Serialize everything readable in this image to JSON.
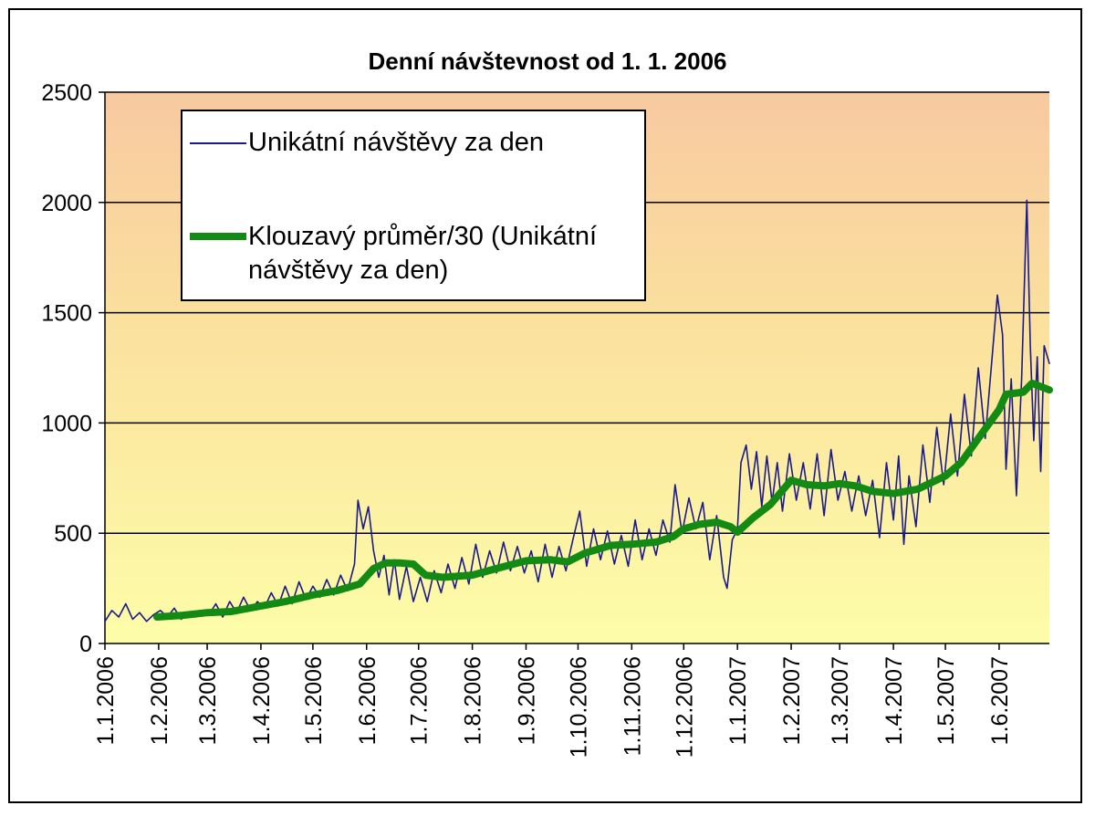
{
  "chart_data": {
    "type": "line",
    "title": "Denní návštevnost od 1. 1. 2006",
    "xlabel": "",
    "ylabel": "",
    "ylim": [
      0,
      2500
    ],
    "yticks": [
      0,
      500,
      1000,
      1500,
      2000,
      2500
    ],
    "x_range": [
      "2006-01-01",
      "2007-06-30"
    ],
    "xtick_labels": [
      "1.1.2006",
      "1.2.2006",
      "1.3.2006",
      "1.4.2006",
      "1.5.2006",
      "1.6.2006",
      "1.7.2006",
      "1.8.2006",
      "1.9.2006",
      "1.10.2006",
      "1.11.2006",
      "1.12.2006",
      "1.1.2007",
      "1.2.2007",
      "1.3.2007",
      "1.4.2007",
      "1.5.2007",
      "1.6.2007"
    ],
    "xtick_dates": [
      "2006-01-01",
      "2006-02-01",
      "2006-03-01",
      "2006-04-01",
      "2006-05-01",
      "2006-06-01",
      "2006-07-01",
      "2006-08-01",
      "2006-09-01",
      "2006-10-01",
      "2006-11-01",
      "2006-12-01",
      "2007-01-01",
      "2007-02-01",
      "2007-03-01",
      "2007-04-01",
      "2007-05-01",
      "2007-06-01"
    ],
    "grid": true,
    "legend_placement": "top-left",
    "series": [
      {
        "name": "Unikátní návštěvy za den",
        "color": "#1a1a8c",
        "style": "thin",
        "points": [
          [
            "2006-01-01",
            100
          ],
          [
            "2006-01-05",
            150
          ],
          [
            "2006-01-09",
            120
          ],
          [
            "2006-01-13",
            180
          ],
          [
            "2006-01-17",
            110
          ],
          [
            "2006-01-21",
            140
          ],
          [
            "2006-01-25",
            100
          ],
          [
            "2006-01-29",
            130
          ],
          [
            "2006-02-02",
            150
          ],
          [
            "2006-02-06",
            120
          ],
          [
            "2006-02-10",
            160
          ],
          [
            "2006-02-14",
            110
          ],
          [
            "2006-02-18",
            140
          ],
          [
            "2006-02-22",
            120
          ],
          [
            "2006-02-26",
            150
          ],
          [
            "2006-03-02",
            130
          ],
          [
            "2006-03-06",
            180
          ],
          [
            "2006-03-10",
            120
          ],
          [
            "2006-03-14",
            190
          ],
          [
            "2006-03-18",
            140
          ],
          [
            "2006-03-22",
            210
          ],
          [
            "2006-03-26",
            150
          ],
          [
            "2006-03-30",
            190
          ],
          [
            "2006-04-03",
            160
          ],
          [
            "2006-04-07",
            230
          ],
          [
            "2006-04-11",
            170
          ],
          [
            "2006-04-15",
            260
          ],
          [
            "2006-04-19",
            180
          ],
          [
            "2006-04-23",
            280
          ],
          [
            "2006-04-27",
            200
          ],
          [
            "2006-05-01",
            260
          ],
          [
            "2006-05-05",
            210
          ],
          [
            "2006-05-09",
            290
          ],
          [
            "2006-05-13",
            220
          ],
          [
            "2006-05-17",
            310
          ],
          [
            "2006-05-21",
            240
          ],
          [
            "2006-05-25",
            360
          ],
          [
            "2006-05-27",
            650
          ],
          [
            "2006-05-30",
            520
          ],
          [
            "2006-06-02",
            620
          ],
          [
            "2006-06-05",
            420
          ],
          [
            "2006-06-08",
            300
          ],
          [
            "2006-06-11",
            400
          ],
          [
            "2006-06-14",
            220
          ],
          [
            "2006-06-17",
            380
          ],
          [
            "2006-06-20",
            200
          ],
          [
            "2006-06-24",
            350
          ],
          [
            "2006-06-28",
            190
          ],
          [
            "2006-07-02",
            300
          ],
          [
            "2006-07-06",
            190
          ],
          [
            "2006-07-10",
            330
          ],
          [
            "2006-07-14",
            230
          ],
          [
            "2006-07-18",
            360
          ],
          [
            "2006-07-22",
            250
          ],
          [
            "2006-07-26",
            390
          ],
          [
            "2006-07-30",
            270
          ],
          [
            "2006-08-03",
            450
          ],
          [
            "2006-08-07",
            300
          ],
          [
            "2006-08-11",
            420
          ],
          [
            "2006-08-15",
            320
          ],
          [
            "2006-08-19",
            460
          ],
          [
            "2006-08-23",
            330
          ],
          [
            "2006-08-27",
            440
          ],
          [
            "2006-08-31",
            320
          ],
          [
            "2006-09-04",
            420
          ],
          [
            "2006-09-08",
            280
          ],
          [
            "2006-09-12",
            450
          ],
          [
            "2006-09-16",
            300
          ],
          [
            "2006-09-20",
            440
          ],
          [
            "2006-09-24",
            330
          ],
          [
            "2006-09-28",
            470
          ],
          [
            "2006-10-02",
            600
          ],
          [
            "2006-10-06",
            350
          ],
          [
            "2006-10-10",
            520
          ],
          [
            "2006-10-14",
            380
          ],
          [
            "2006-10-18",
            510
          ],
          [
            "2006-10-22",
            360
          ],
          [
            "2006-10-26",
            490
          ],
          [
            "2006-10-30",
            350
          ],
          [
            "2006-11-03",
            560
          ],
          [
            "2006-11-07",
            380
          ],
          [
            "2006-11-11",
            520
          ],
          [
            "2006-11-15",
            400
          ],
          [
            "2006-11-19",
            560
          ],
          [
            "2006-11-23",
            460
          ],
          [
            "2006-11-26",
            720
          ],
          [
            "2006-11-30",
            500
          ],
          [
            "2006-12-04",
            660
          ],
          [
            "2006-12-08",
            520
          ],
          [
            "2006-12-12",
            640
          ],
          [
            "2006-12-16",
            380
          ],
          [
            "2006-12-20",
            580
          ],
          [
            "2006-12-24",
            300
          ],
          [
            "2006-12-26",
            250
          ],
          [
            "2006-12-29",
            470
          ],
          [
            "2007-01-01",
            520
          ],
          [
            "2007-01-03",
            820
          ],
          [
            "2007-01-06",
            900
          ],
          [
            "2007-01-09",
            700
          ],
          [
            "2007-01-12",
            870
          ],
          [
            "2007-01-15",
            620
          ],
          [
            "2007-01-18",
            850
          ],
          [
            "2007-01-21",
            640
          ],
          [
            "2007-01-24",
            820
          ],
          [
            "2007-01-27",
            600
          ],
          [
            "2007-01-31",
            860
          ],
          [
            "2007-02-04",
            650
          ],
          [
            "2007-02-08",
            820
          ],
          [
            "2007-02-12",
            610
          ],
          [
            "2007-02-16",
            860
          ],
          [
            "2007-02-20",
            580
          ],
          [
            "2007-02-24",
            880
          ],
          [
            "2007-02-28",
            650
          ],
          [
            "2007-03-04",
            780
          ],
          [
            "2007-03-08",
            600
          ],
          [
            "2007-03-12",
            760
          ],
          [
            "2007-03-16",
            580
          ],
          [
            "2007-03-20",
            740
          ],
          [
            "2007-03-24",
            480
          ],
          [
            "2007-03-28",
            820
          ],
          [
            "2007-04-01",
            560
          ],
          [
            "2007-04-04",
            850
          ],
          [
            "2007-04-07",
            450
          ],
          [
            "2007-04-10",
            760
          ],
          [
            "2007-04-14",
            530
          ],
          [
            "2007-04-18",
            900
          ],
          [
            "2007-04-22",
            640
          ],
          [
            "2007-04-26",
            980
          ],
          [
            "2007-04-30",
            720
          ],
          [
            "2007-05-04",
            1040
          ],
          [
            "2007-05-08",
            760
          ],
          [
            "2007-05-12",
            1130
          ],
          [
            "2007-05-16",
            850
          ],
          [
            "2007-05-20",
            1250
          ],
          [
            "2007-05-24",
            930
          ],
          [
            "2007-05-28",
            1300
          ],
          [
            "2007-05-31",
            1580
          ],
          [
            "2007-06-03",
            1400
          ],
          [
            "2007-06-05",
            790
          ],
          [
            "2007-06-08",
            1200
          ],
          [
            "2007-06-11",
            670
          ],
          [
            "2007-06-14",
            1200
          ],
          [
            "2007-06-17",
            2010
          ],
          [
            "2007-06-19",
            1350
          ],
          [
            "2007-06-21",
            920
          ],
          [
            "2007-06-23",
            1300
          ],
          [
            "2007-06-25",
            780
          ],
          [
            "2007-06-27",
            1350
          ],
          [
            "2007-06-30",
            1270
          ]
        ]
      },
      {
        "name": "Klouzavý průměr/30 (Unikátní návštěvy za den)",
        "color": "#138a13",
        "style": "thick",
        "points": [
          [
            "2006-01-31",
            120
          ],
          [
            "2006-02-15",
            128
          ],
          [
            "2006-03-01",
            140
          ],
          [
            "2006-03-15",
            145
          ],
          [
            "2006-04-01",
            170
          ],
          [
            "2006-04-15",
            190
          ],
          [
            "2006-05-01",
            220
          ],
          [
            "2006-05-15",
            240
          ],
          [
            "2006-05-28",
            270
          ],
          [
            "2006-06-05",
            340
          ],
          [
            "2006-06-12",
            365
          ],
          [
            "2006-06-20",
            365
          ],
          [
            "2006-06-28",
            360
          ],
          [
            "2006-07-05",
            310
          ],
          [
            "2006-07-15",
            300
          ],
          [
            "2006-08-01",
            310
          ],
          [
            "2006-08-15",
            340
          ],
          [
            "2006-09-01",
            375
          ],
          [
            "2006-09-15",
            380
          ],
          [
            "2006-09-25",
            370
          ],
          [
            "2006-10-05",
            410
          ],
          [
            "2006-10-20",
            445
          ],
          [
            "2006-11-01",
            450
          ],
          [
            "2006-11-15",
            460
          ],
          [
            "2006-11-25",
            485
          ],
          [
            "2006-12-01",
            520
          ],
          [
            "2006-12-10",
            540
          ],
          [
            "2006-12-20",
            550
          ],
          [
            "2006-12-28",
            530
          ],
          [
            "2007-01-01",
            505
          ],
          [
            "2007-01-10",
            570
          ],
          [
            "2007-01-20",
            630
          ],
          [
            "2007-02-01",
            740
          ],
          [
            "2007-02-10",
            720
          ],
          [
            "2007-02-20",
            715
          ],
          [
            "2007-03-01",
            725
          ],
          [
            "2007-03-10",
            715
          ],
          [
            "2007-03-20",
            690
          ],
          [
            "2007-04-01",
            680
          ],
          [
            "2007-04-15",
            700
          ],
          [
            "2007-05-01",
            760
          ],
          [
            "2007-05-10",
            820
          ],
          [
            "2007-05-20",
            930
          ],
          [
            "2007-06-01",
            1060
          ],
          [
            "2007-06-05",
            1130
          ],
          [
            "2007-06-15",
            1140
          ],
          [
            "2007-06-20",
            1180
          ],
          [
            "2007-06-30",
            1150
          ]
        ]
      }
    ]
  },
  "legend": {
    "entry1": "Unikátní návštěvy za den",
    "entry2_line1": "Klouzavý průměr/30 (Unikátní",
    "entry2_line2": "návštěvy za den)"
  }
}
